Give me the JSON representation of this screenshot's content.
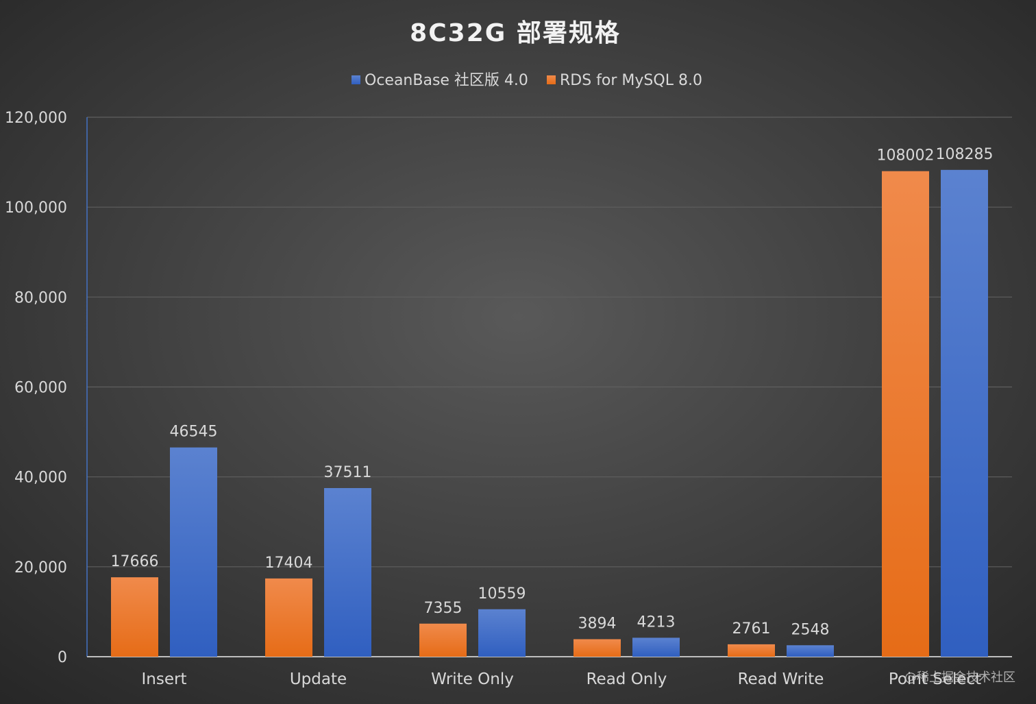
{
  "chart_data": {
    "type": "bar",
    "title": "8C32G 部署规格",
    "categories": [
      "Insert",
      "Update",
      "Write Only",
      "Read Only",
      "Read Write",
      "Point Select"
    ],
    "series": [
      {
        "name": "RDS for MySQL 8.0",
        "color": "#ed7d31",
        "values": [
          17666,
          17404,
          7355,
          3894,
          2761,
          108002
        ]
      },
      {
        "name": "OceanBase 社区版 4.0",
        "color": "#4472c4",
        "values": [
          46545,
          37511,
          10559,
          4213,
          2548,
          108285
        ]
      }
    ],
    "legend_order": [
      "OceanBase 社区版 4.0",
      "RDS for MySQL 8.0"
    ],
    "legend_position": "top-center",
    "ylim": [
      0,
      120000
    ],
    "yticks": [
      0,
      20000,
      40000,
      60000,
      80000,
      100000,
      120000
    ],
    "ytick_labels": [
      "0",
      "20,000",
      "40,000",
      "60,000",
      "80,000",
      "100,000",
      "120,000"
    ],
    "grid": true,
    "xlabel": "",
    "ylabel": "",
    "background_color": "#404040"
  },
  "watermark": "@稀土掘金技术社区"
}
